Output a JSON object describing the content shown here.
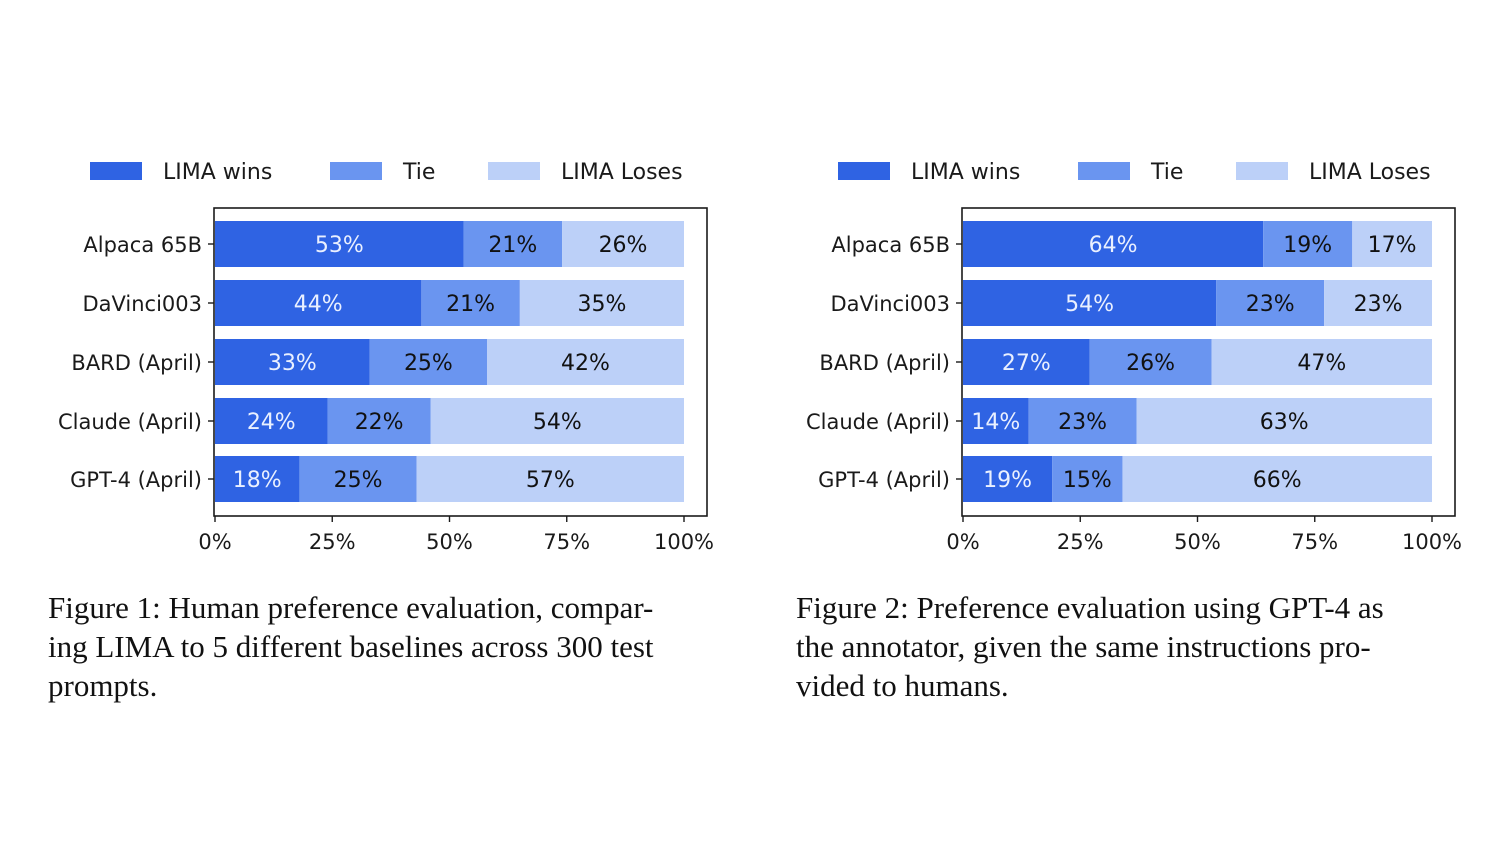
{
  "colors": {
    "lima_wins": "#2f63e3",
    "tie": "#6a95f0",
    "lima_loses": "#bcd0f8",
    "label_on_dark": "#eaf0ff",
    "label_on_light": "#111111",
    "frame": "#1a1a1a"
  },
  "figures": [
    {
      "caption": "Figure 1: Human preference evaluation, compar-\ning LIMA to 5 different baselines across 300 test\nprompts."
    },
    {
      "caption": "Figure 2: Preference evaluation using GPT-4 as\nthe annotator, given the same instructions pro-\nvided to humans."
    }
  ],
  "chart_data": [
    {
      "type": "bar",
      "orientation": "horizontal",
      "stacked": true,
      "title": "",
      "xlabel": "",
      "ylabel": "",
      "xlim": [
        0,
        100
      ],
      "x_ticks": [
        "0%",
        "25%",
        "50%",
        "75%",
        "100%"
      ],
      "legend_position": "top",
      "categories": [
        "Alpaca 65B",
        "DaVinci003",
        "BARD (April)",
        "Claude (April)",
        "GPT-4 (April)"
      ],
      "series": [
        {
          "name": "LIMA wins",
          "values": [
            53,
            44,
            33,
            24,
            18
          ],
          "labels": [
            "53%",
            "44%",
            "33%",
            "24%",
            "18%"
          ]
        },
        {
          "name": "Tie",
          "values": [
            21,
            21,
            25,
            22,
            25
          ],
          "labels": [
            "21%",
            "21%",
            "25%",
            "22%",
            "25%"
          ]
        },
        {
          "name": "LIMA Loses",
          "values": [
            26,
            35,
            42,
            54,
            57
          ],
          "labels": [
            "26%",
            "35%",
            "42%",
            "54%",
            "57%"
          ]
        }
      ]
    },
    {
      "type": "bar",
      "orientation": "horizontal",
      "stacked": true,
      "title": "",
      "xlabel": "",
      "ylabel": "",
      "xlim": [
        0,
        100
      ],
      "x_ticks": [
        "0%",
        "25%",
        "50%",
        "75%",
        "100%"
      ],
      "legend_position": "top",
      "categories": [
        "Alpaca 65B",
        "DaVinci003",
        "BARD (April)",
        "Claude (April)",
        "GPT-4 (April)"
      ],
      "series": [
        {
          "name": "LIMA wins",
          "values": [
            64,
            54,
            27,
            14,
            19
          ],
          "labels": [
            "64%",
            "54%",
            "27%",
            "14%",
            "19%"
          ]
        },
        {
          "name": "Tie",
          "values": [
            19,
            23,
            26,
            23,
            15
          ],
          "labels": [
            "19%",
            "23%",
            "26%",
            "23%",
            "15%"
          ]
        },
        {
          "name": "LIMA Loses",
          "values": [
            17,
            23,
            47,
            63,
            66
          ],
          "labels": [
            "17%",
            "23%",
            "47%",
            "63%",
            "66%"
          ]
        }
      ]
    }
  ]
}
